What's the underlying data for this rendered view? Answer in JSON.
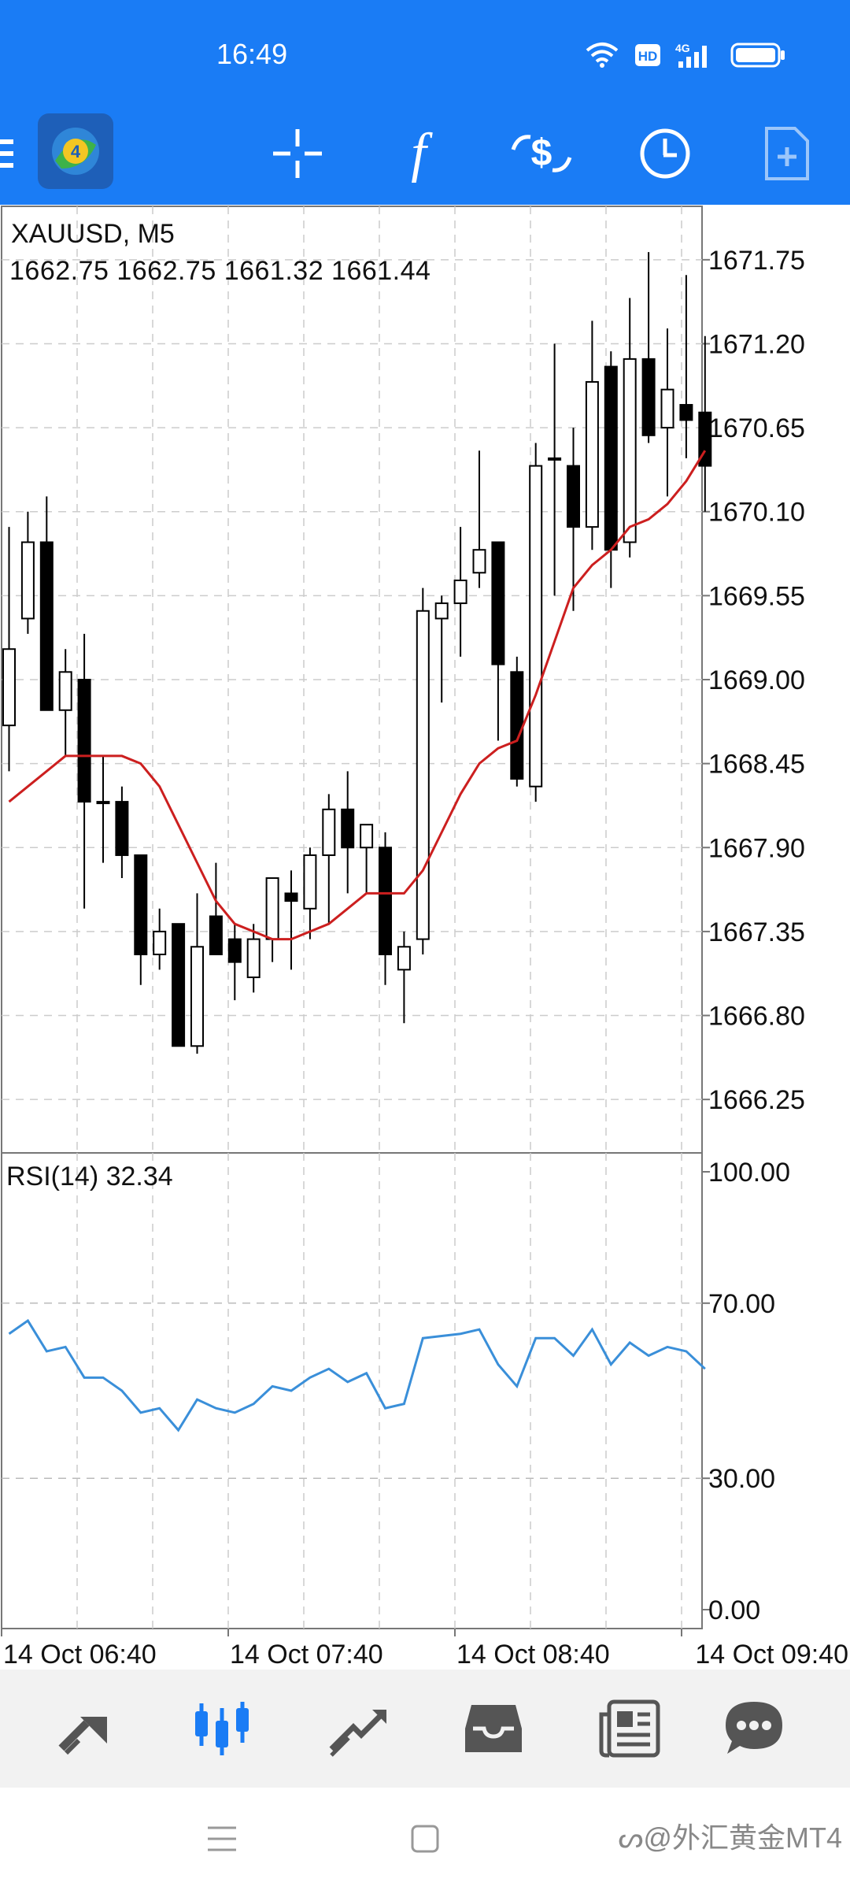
{
  "status_bar": {
    "time": "16:49",
    "icons": [
      "wifi-icon",
      "hd-icon",
      "4g-signal-icon",
      "battery-icon"
    ],
    "hd_text": "HD",
    "net_text": "4G"
  },
  "toolbar": {
    "items": [
      "menu-icon",
      "metatrader-logo",
      "crosshair-icon",
      "indicators-icon",
      "trade-icon",
      "timeframe-icon",
      "new-order-icon"
    ],
    "indicator_glyph": "f"
  },
  "chart": {
    "symbol": "XAUUSD, M5",
    "ohlc": "1662.75 1662.75 1661.32 1661.44",
    "price_labels": [
      "1671.75",
      "1671.20",
      "1670.65",
      "1670.10",
      "1669.55",
      "1669.00",
      "1668.45",
      "1667.90",
      "1667.35",
      "1666.80",
      "1666.25"
    ],
    "ma_color": "#cc1f1f",
    "accent": "#1a7cf5"
  },
  "rsi": {
    "label": "RSI(14) 32.34",
    "levels": [
      "100.00",
      "70.00",
      "30.00",
      "0.00"
    ],
    "line_color": "#3a8fd9"
  },
  "time_axis": [
    "14 Oct 06:40",
    "14 Oct 07:40",
    "14 Oct 08:40",
    "14 Oct 09:40"
  ],
  "bottom_nav": {
    "items": [
      "quotes-icon",
      "chart-icon",
      "trade-icon",
      "history-icon",
      "news-icon",
      "messages-icon"
    ],
    "active": "chart-icon"
  },
  "watermark": "外汇黄金MT4",
  "chart_data": {
    "type": "candlestick",
    "y_range": [
      1665.9,
      1672.1
    ],
    "candles": [
      {
        "o": 1668.7,
        "h": 1670.0,
        "l": 1668.4,
        "c": 1669.2
      },
      {
        "o": 1669.4,
        "h": 1670.1,
        "l": 1669.3,
        "c": 1669.9
      },
      {
        "o": 1669.9,
        "h": 1670.2,
        "l": 1668.8,
        "c": 1668.8
      },
      {
        "o": 1668.8,
        "h": 1669.2,
        "l": 1668.5,
        "c": 1669.05
      },
      {
        "o": 1669.0,
        "h": 1669.3,
        "l": 1667.5,
        "c": 1668.2
      },
      {
        "o": 1668.2,
        "h": 1668.5,
        "l": 1667.8,
        "c": 1668.2
      },
      {
        "o": 1668.2,
        "h": 1668.3,
        "l": 1667.7,
        "c": 1667.85
      },
      {
        "o": 1667.85,
        "h": 1667.85,
        "l": 1667.0,
        "c": 1667.2
      },
      {
        "o": 1667.2,
        "h": 1667.5,
        "l": 1667.1,
        "c": 1667.35
      },
      {
        "o": 1667.4,
        "h": 1667.4,
        "l": 1666.6,
        "c": 1666.6
      },
      {
        "o": 1666.6,
        "h": 1667.6,
        "l": 1666.55,
        "c": 1667.25
      },
      {
        "o": 1667.45,
        "h": 1667.8,
        "l": 1667.2,
        "c": 1667.2
      },
      {
        "o": 1667.3,
        "h": 1667.4,
        "l": 1666.9,
        "c": 1667.15
      },
      {
        "o": 1667.05,
        "h": 1667.4,
        "l": 1666.95,
        "c": 1667.3
      },
      {
        "o": 1667.3,
        "h": 1667.7,
        "l": 1667.15,
        "c": 1667.7
      },
      {
        "o": 1667.6,
        "h": 1667.75,
        "l": 1667.1,
        "c": 1667.55
      },
      {
        "o": 1667.5,
        "h": 1667.9,
        "l": 1667.3,
        "c": 1667.85
      },
      {
        "o": 1667.85,
        "h": 1668.25,
        "l": 1667.4,
        "c": 1668.15
      },
      {
        "o": 1668.15,
        "h": 1668.4,
        "l": 1667.6,
        "c": 1667.9
      },
      {
        "o": 1667.9,
        "h": 1668.05,
        "l": 1667.6,
        "c": 1668.05
      },
      {
        "o": 1667.9,
        "h": 1668.0,
        "l": 1667.0,
        "c": 1667.2
      },
      {
        "o": 1667.1,
        "h": 1667.35,
        "l": 1666.75,
        "c": 1667.25
      },
      {
        "o": 1667.3,
        "h": 1669.6,
        "l": 1667.2,
        "c": 1669.45
      },
      {
        "o": 1669.4,
        "h": 1669.55,
        "l": 1668.85,
        "c": 1669.5
      },
      {
        "o": 1669.5,
        "h": 1670.0,
        "l": 1669.15,
        "c": 1669.65
      },
      {
        "o": 1669.7,
        "h": 1670.5,
        "l": 1669.6,
        "c": 1669.85
      },
      {
        "o": 1669.9,
        "h": 1669.9,
        "l": 1668.6,
        "c": 1669.1
      },
      {
        "o": 1669.05,
        "h": 1669.15,
        "l": 1668.3,
        "c": 1668.35
      },
      {
        "o": 1668.3,
        "h": 1670.55,
        "l": 1668.2,
        "c": 1670.4
      },
      {
        "o": 1670.45,
        "h": 1671.2,
        "l": 1669.55,
        "c": 1670.45
      },
      {
        "o": 1670.4,
        "h": 1670.65,
        "l": 1669.45,
        "c": 1670.0
      },
      {
        "o": 1670.0,
        "h": 1671.35,
        "l": 1669.85,
        "c": 1670.95
      },
      {
        "o": 1671.05,
        "h": 1671.15,
        "l": 1669.6,
        "c": 1669.85
      },
      {
        "o": 1669.9,
        "h": 1671.5,
        "l": 1669.8,
        "c": 1671.1
      },
      {
        "o": 1671.1,
        "h": 1671.8,
        "l": 1670.55,
        "c": 1670.6
      },
      {
        "o": 1670.65,
        "h": 1671.3,
        "l": 1670.2,
        "c": 1670.9
      },
      {
        "o": 1670.8,
        "h": 1671.65,
        "l": 1670.45,
        "c": 1670.7
      },
      {
        "o": 1670.75,
        "h": 1671.25,
        "l": 1670.1,
        "c": 1670.4
      }
    ],
    "ma": [
      1668.2,
      1668.3,
      1668.4,
      1668.5,
      1668.5,
      1668.5,
      1668.5,
      1668.45,
      1668.3,
      1668.05,
      1667.8,
      1667.55,
      1667.4,
      1667.35,
      1667.3,
      1667.3,
      1667.35,
      1667.4,
      1667.5,
      1667.6,
      1667.6,
      1667.6,
      1667.75,
      1668.0,
      1668.25,
      1668.45,
      1668.55,
      1668.6,
      1668.9,
      1669.25,
      1669.6,
      1669.75,
      1669.85,
      1670.0,
      1670.05,
      1670.15,
      1670.3,
      1670.5
    ],
    "rsi_values": [
      63,
      66,
      59,
      60,
      53,
      53,
      50,
      45,
      46,
      41,
      48,
      46,
      45,
      47,
      51,
      50,
      53,
      55,
      52,
      54,
      46,
      47,
      62,
      62.5,
      63,
      64,
      56,
      51,
      62,
      62,
      58,
      64,
      56,
      61,
      58,
      60,
      59,
      55
    ]
  }
}
